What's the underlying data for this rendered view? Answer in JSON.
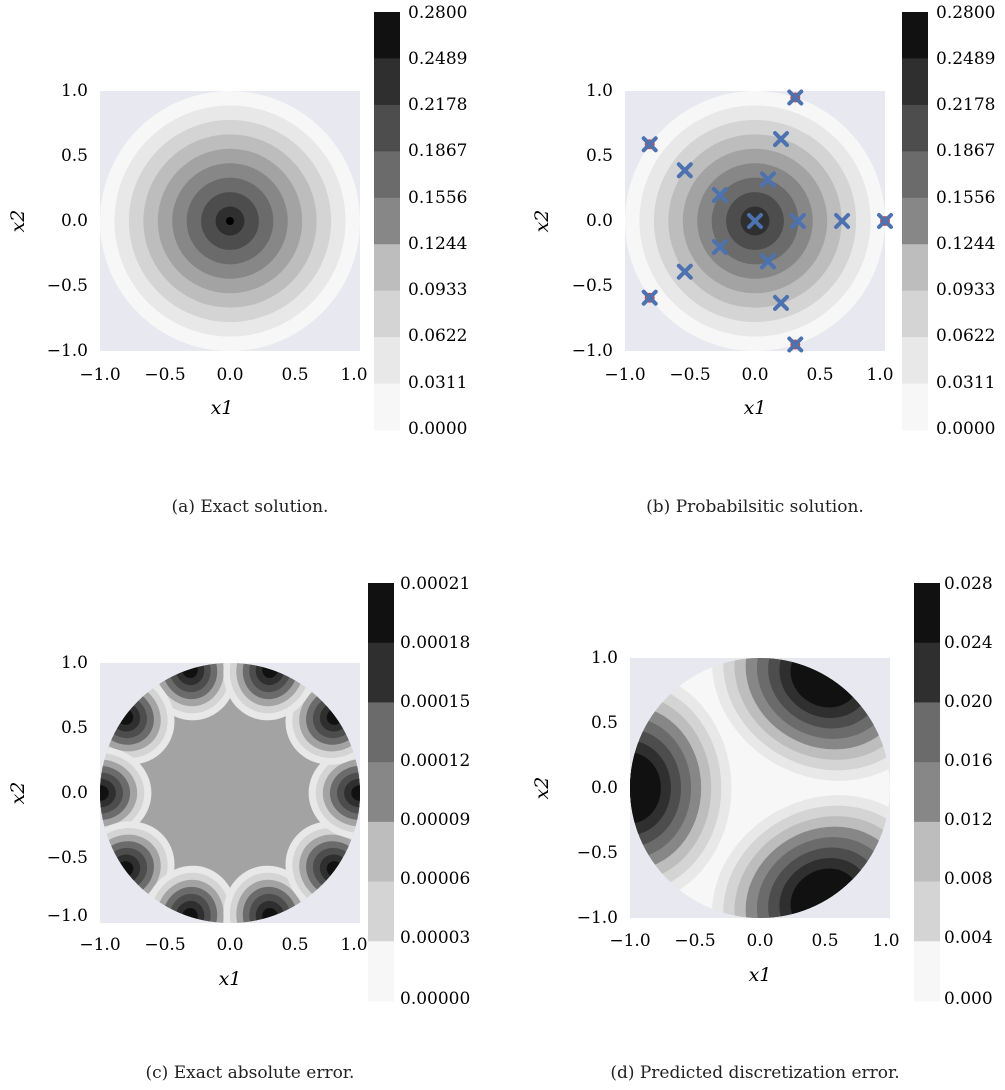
{
  "figure": {
    "captions": [
      "(a) Exact solution.",
      "(b) Probabilsitic solution.",
      "(c) Exact absolute error.",
      "(d) Predicted discretization error."
    ]
  },
  "style": {
    "plot_background": "#e8e8f0",
    "grayscale_levels": [
      "#f7f7f7",
      "#e8e8e8",
      "#d4d4d4",
      "#bdbdbd",
      "#a3a3a3",
      "#878787",
      "#6b6b6b",
      "#4d4d4d",
      "#2f2f2f",
      "#111111"
    ],
    "marker_blue": "#4c72b0",
    "marker_red": "#c44e52"
  },
  "chart_data": [
    {
      "type": "contour",
      "caption": "(a) Exact solution.",
      "xlabel": "x1",
      "ylabel": "x2",
      "xlim": [
        -1.0,
        1.0
      ],
      "ylim": [
        -1.0,
        1.0
      ],
      "xticks": [
        "−1.0",
        "−0.5",
        "0.0",
        "0.5",
        "1.0"
      ],
      "yticks": [
        "−1.0",
        "−0.5",
        "0.0",
        "0.5",
        "1.0"
      ],
      "field": "radial",
      "domain": "disk radius 1",
      "colorbar_ticks": [
        "0.2800",
        "0.2489",
        "0.2178",
        "0.1867",
        "0.1556",
        "0.1244",
        "0.0933",
        "0.0622",
        "0.0311",
        "0.0000"
      ],
      "center_marker": [
        0.0,
        0.0
      ]
    },
    {
      "type": "contour",
      "caption": "(b) Probabilsitic solution.",
      "xlabel": "x1",
      "ylabel": "x2",
      "xlim": [
        -1.0,
        1.0
      ],
      "ylim": [
        -1.0,
        1.0
      ],
      "xticks": [
        "−1.0",
        "−0.5",
        "0.0",
        "0.5",
        "1.0"
      ],
      "yticks": [
        "−1.0",
        "−0.5",
        "0.0",
        "0.5",
        "1.0"
      ],
      "field": "radial",
      "domain": "disk radius 1",
      "colorbar_ticks": [
        "0.2800",
        "0.2489",
        "0.2178",
        "0.1867",
        "0.1556",
        "0.1244",
        "0.0933",
        "0.0622",
        "0.0311",
        "0.0000"
      ],
      "interior_points": [
        [
          0.0,
          0.0
        ],
        [
          0.33,
          0.0
        ],
        [
          0.1,
          0.32
        ],
        [
          -0.27,
          0.2
        ],
        [
          -0.27,
          -0.2
        ],
        [
          0.1,
          -0.31
        ],
        [
          0.67,
          0.0
        ],
        [
          0.2,
          0.63
        ],
        [
          -0.54,
          0.39
        ],
        [
          -0.54,
          -0.39
        ],
        [
          0.2,
          -0.63
        ]
      ],
      "boundary_points": [
        [
          1.0,
          0.0
        ],
        [
          0.31,
          0.95
        ],
        [
          -0.81,
          0.59
        ],
        [
          -0.81,
          -0.59
        ],
        [
          0.31,
          -0.95
        ]
      ]
    },
    {
      "type": "contour",
      "caption": "(c) Exact absolute error.",
      "xlabel": "x1",
      "ylabel": "x2",
      "xlim": [
        -1.0,
        1.0
      ],
      "ylim": [
        -1.0,
        1.0
      ],
      "xticks": [
        "−1.0",
        "−0.5",
        "0.0",
        "0.5",
        "1.0"
      ],
      "yticks": [
        "−1.0",
        "−0.5",
        "0.0",
        "0.5",
        "1.0"
      ],
      "field": "boundary_lobes",
      "lobes": 10,
      "domain": "disk radius 1",
      "colorbar_ticks": [
        "0.00021",
        "0.00018",
        "0.00015",
        "0.00012",
        "0.00009",
        "0.00006",
        "0.00003",
        "0.00000"
      ]
    },
    {
      "type": "contour",
      "caption": "(d) Predicted discretization error.",
      "xlabel": "x1",
      "ylabel": "x2",
      "xlim": [
        -1.0,
        1.0
      ],
      "ylim": [
        -1.0,
        1.0
      ],
      "xticks": [
        "−1.0",
        "−0.5",
        "0.0",
        "0.5",
        "1.0"
      ],
      "yticks": [
        "−1.0",
        "−0.5",
        "0.0",
        "0.5",
        "1.0"
      ],
      "field": "boundary_lobes",
      "lobes": 3,
      "domain": "disk radius 1",
      "colorbar_ticks": [
        "0.028",
        "0.024",
        "0.020",
        "0.016",
        "0.012",
        "0.008",
        "0.004",
        "0.000"
      ]
    }
  ]
}
